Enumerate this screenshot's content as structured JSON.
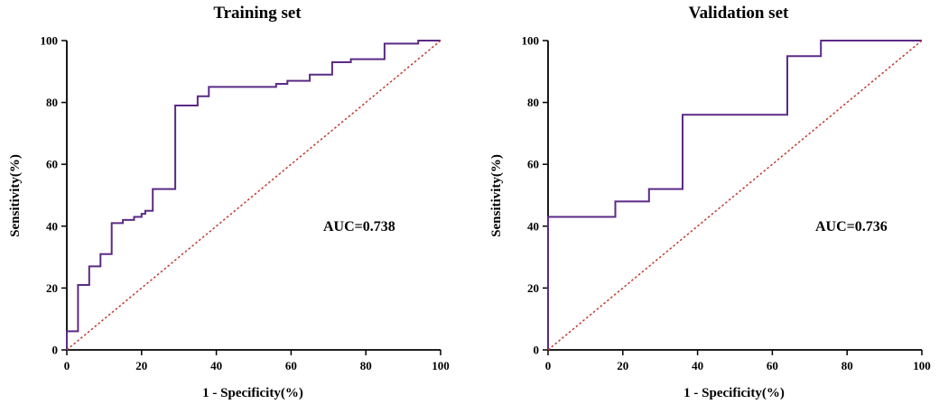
{
  "chart_data": [
    {
      "type": "line",
      "title": "Training set",
      "xlabel": "1 - Specificity(%)",
      "ylabel": "Sensitivity(%)",
      "xlim": [
        0,
        100
      ],
      "ylim": [
        0,
        100
      ],
      "xticks": [
        0,
        20,
        40,
        60,
        80,
        100
      ],
      "yticks": [
        0,
        20,
        40,
        60,
        80,
        100
      ],
      "annotation": "AUC=0.738",
      "series": [
        {
          "color": "#5b2a86",
          "step": true,
          "x": [
            0,
            0,
            3,
            3,
            6,
            6,
            9,
            9,
            12,
            12,
            15,
            15,
            18,
            18,
            20,
            20,
            21,
            21,
            23,
            23,
            29,
            29,
            35,
            35,
            38,
            38,
            56,
            56,
            59,
            59,
            65,
            65,
            71,
            71,
            76,
            76,
            85,
            85,
            94,
            94,
            100
          ],
          "y": [
            0,
            6,
            6,
            21,
            21,
            27,
            27,
            31,
            31,
            41,
            41,
            42,
            42,
            43,
            43,
            44,
            44,
            45,
            45,
            52,
            52,
            79,
            79,
            82,
            82,
            85,
            85,
            86,
            86,
            87,
            87,
            89,
            89,
            93,
            93,
            94,
            94,
            99,
            99,
            100,
            100
          ]
        },
        {
          "color": "#c0392b",
          "style": "dashed",
          "x": [
            0,
            100
          ],
          "y": [
            0,
            100
          ]
        }
      ]
    },
    {
      "type": "line",
      "title": "Validation set",
      "xlabel": "1 - Specificity(%)",
      "ylabel": "Sensitivity(%)",
      "xlim": [
        0,
        100
      ],
      "ylim": [
        0,
        100
      ],
      "xticks": [
        0,
        20,
        40,
        60,
        80,
        100
      ],
      "yticks": [
        0,
        20,
        40,
        60,
        80,
        100
      ],
      "annotation": "AUC=0.736",
      "series": [
        {
          "color": "#5b2a86",
          "step": true,
          "x": [
            0,
            0,
            18,
            18,
            27,
            27,
            36,
            36,
            64,
            64,
            73,
            73,
            100
          ],
          "y": [
            0,
            43,
            43,
            48,
            48,
            52,
            52,
            76,
            76,
            95,
            95,
            100,
            100
          ]
        },
        {
          "color": "#c0392b",
          "style": "dashed",
          "x": [
            0,
            100
          ],
          "y": [
            0,
            100
          ]
        }
      ]
    }
  ]
}
